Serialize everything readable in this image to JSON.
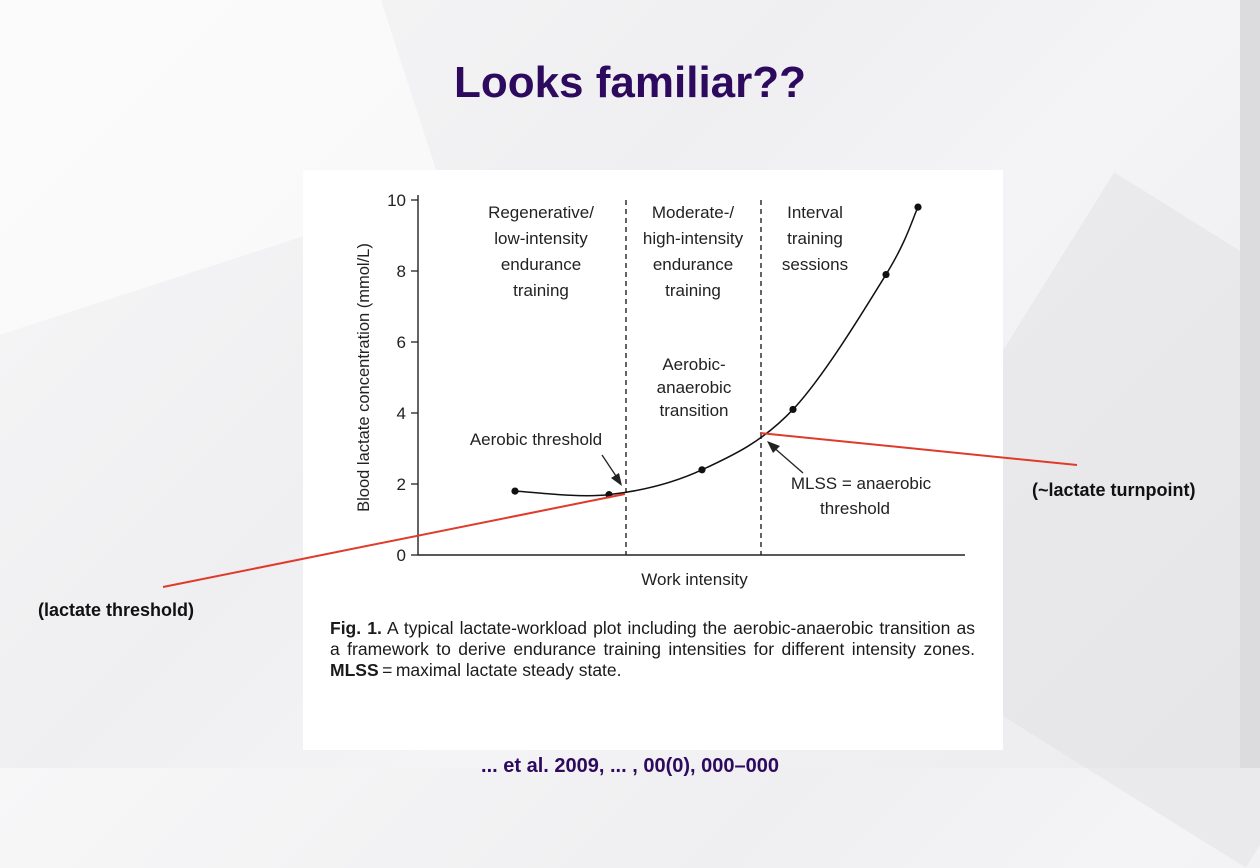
{
  "slide": {
    "title": "Looks familiar??",
    "label_left": "(lactate threshold)",
    "label_right": "(~lactate turnpoint)",
    "footer": "... et al. 2009, ... , 00(0), 000–000"
  },
  "colors": {
    "title": "#2d0a5e",
    "annotation_line": "#e03a2a",
    "curve": "#111111"
  },
  "chart_data": {
    "type": "line",
    "xlabel": "Work intensity",
    "ylabel": "Blood lactate concentration (mmol/L)",
    "ylim": [
      0,
      10
    ],
    "yticks": [
      "0",
      "2",
      "4",
      "6",
      "8",
      "10"
    ],
    "series": [
      {
        "x": [
          1,
          2,
          3,
          4,
          5,
          6
        ],
        "values": [
          1.8,
          1.7,
          2.4,
          4.1,
          7.9,
          9.8
        ]
      }
    ],
    "zones": [
      {
        "lines": [
          "Regenerative/",
          "low-intensity",
          "endurance",
          "training"
        ]
      },
      {
        "lines": [
          "Moderate-/",
          "high-intensity",
          "endurance",
          "training"
        ]
      },
      {
        "lines": [
          "Interval",
          "training",
          "sessions"
        ]
      }
    ],
    "annotations": {
      "aerobic_threshold": "Aerobic threshold",
      "transition": [
        "Aerobic-",
        "anaerobic",
        "transition"
      ],
      "mlss": [
        "MLSS = anaerobic",
        "threshold"
      ]
    },
    "caption": {
      "label": "Fig. 1.",
      "text_1": " A typical lactate-workload plot including the aerobic-anaerobic transition as a framework to derive endurance training intensities for different intensity zones. ",
      "mlss_bold": "MLSS",
      "text_2": " = maximal lactate steady state."
    }
  }
}
